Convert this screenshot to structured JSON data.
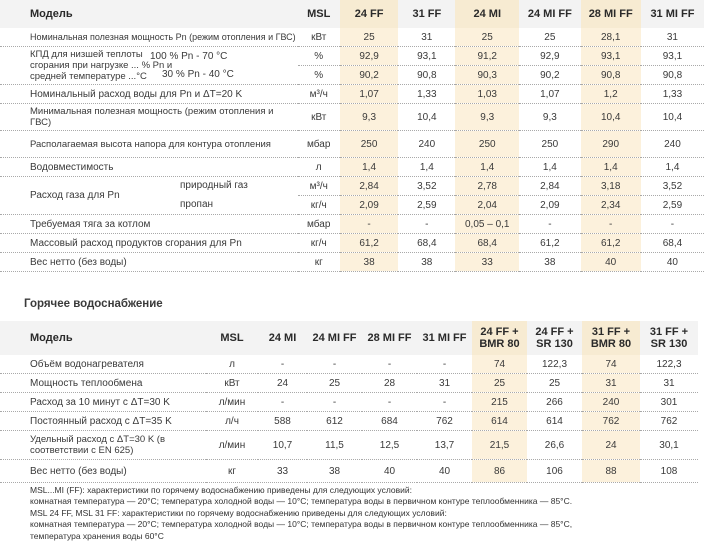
{
  "table1": {
    "head": [
      "Модель",
      "MSL",
      "24 FF",
      "31 FF",
      "24 MI",
      "24 MI FF",
      "28 MI FF",
      "31 MI FF"
    ],
    "rows": [
      {
        "label": "Номинальная полезная мощность Pn (режим отопления и ГВС)",
        "unit": "кВт",
        "vals": [
          "25",
          "31",
          "25",
          "25",
          "28,1",
          "31"
        ]
      },
      {
        "label": "КПД для низшей теплоты сгорания при нагрузке ... % Pn и средней температуре ...°C",
        "sub": "100 % Pn - 70 °C",
        "unit": "%",
        "vals": [
          "92,9",
          "93,1",
          "91,2",
          "92,9",
          "93,1",
          "93,1"
        ]
      },
      {
        "sub": "30 % Pn - 40 °C",
        "unit": "%",
        "vals": [
          "90,2",
          "90,8",
          "90,3",
          "90,2",
          "90,8",
          "90,8"
        ]
      },
      {
        "label": "Номинальный расход воды для Pn и ΔT=20 K",
        "unit": "м³/ч",
        "vals": [
          "1,07",
          "1,33",
          "1,03",
          "1,07",
          "1,2",
          "1,33"
        ]
      },
      {
        "label": "Минимальная полезная мощность (режим отопления и ГВС)",
        "unit": "кВт",
        "vals": [
          "9,3",
          "10,4",
          "9,3",
          "9,3",
          "10,4",
          "10,4"
        ]
      },
      {
        "label": "Располагаемая высота напора для контура отопления",
        "unit": "мбар",
        "vals": [
          "250",
          "240",
          "250",
          "250",
          "290",
          "240"
        ]
      },
      {
        "label": "Водовместимость",
        "unit": "л",
        "vals": [
          "1,4",
          "1,4",
          "1,4",
          "1,4",
          "1,4",
          "1,4"
        ]
      },
      {
        "label": "Расход газа для Pn",
        "sub": "природный газ",
        "unit": "м³/ч",
        "vals": [
          "2,84",
          "3,52",
          "2,78",
          "2,84",
          "3,18",
          "3,52"
        ]
      },
      {
        "sub": "пропан",
        "unit": "кг/ч",
        "vals": [
          "2,09",
          "2,59",
          "2,04",
          "2,09",
          "2,34",
          "2,59"
        ]
      },
      {
        "label": "Требуемая тяга за котлом",
        "unit": "мбар",
        "vals": [
          "-",
          "-",
          "0,05 – 0,1",
          "-",
          "-",
          "-"
        ]
      },
      {
        "label": "Массовый расход продуктов сгорания для Pn",
        "unit": "кг/ч",
        "vals": [
          "61,2",
          "68,4",
          "68,4",
          "61,2",
          "61,2",
          "68,4"
        ]
      },
      {
        "label": "Вес нетто (без воды)",
        "unit": "кг",
        "vals": [
          "38",
          "38",
          "33",
          "38",
          "40",
          "40"
        ]
      }
    ]
  },
  "section_title": "Горячее водоснабжение",
  "table2": {
    "head": [
      "Модель",
      "MSL",
      "24 MI",
      "24 MI FF",
      "28 MI FF",
      "31 MI FF",
      "24 FF + BMR 80",
      "24 FF + SR 130",
      "31 FF + BMR 80",
      "31 FF + SR 130"
    ],
    "rows": [
      {
        "label": "Объём водонагревателя",
        "unit": "л",
        "vals": [
          "-",
          "-",
          "-",
          "-",
          "74",
          "122,3",
          "74",
          "122,3"
        ]
      },
      {
        "label": "Мощность теплообмена",
        "unit": "кВт",
        "vals": [
          "24",
          "25",
          "28",
          "31",
          "25",
          "25",
          "31",
          "31"
        ]
      },
      {
        "label": "Расход за 10 минут с ΔT=30 K",
        "unit": "л/мин",
        "vals": [
          "-",
          "-",
          "-",
          "-",
          "215",
          "266",
          "240",
          "301"
        ]
      },
      {
        "label": "Постоянный расход с ΔT=35 K",
        "unit": "л/ч",
        "vals": [
          "588",
          "612",
          "684",
          "762",
          "614",
          "614",
          "762",
          "762"
        ]
      },
      {
        "label": "Удельный расход с ΔT=30 K (в соответствии с EN 625)",
        "unit": "л/мин",
        "vals": [
          "10,7",
          "11,5",
          "12,5",
          "13,7",
          "21,5",
          "26,6",
          "24",
          "30,1"
        ]
      },
      {
        "label": "Вес нетто (без воды)",
        "unit": "кг",
        "vals": [
          "33",
          "38",
          "40",
          "40",
          "86",
          "106",
          "88",
          "108"
        ]
      }
    ]
  },
  "notes": [
    "MSL...MI (FF): характеристики по горячему водоснабжению приведены для следующих условий:",
    "комнатная температура — 20°С; температура холодной воды — 10°С; температура воды в первичном контуре теплообменника — 85°С.",
    "MSL 24 FF, MSL 31 FF: характеристики по горячему водоснабжению приведены для следующих условий:",
    "комнатная температура — 20°С; температура холодной воды — 10°С; температура воды в первичном контуре теплообменника — 85°С,",
    "температура хранения воды 60°С"
  ]
}
